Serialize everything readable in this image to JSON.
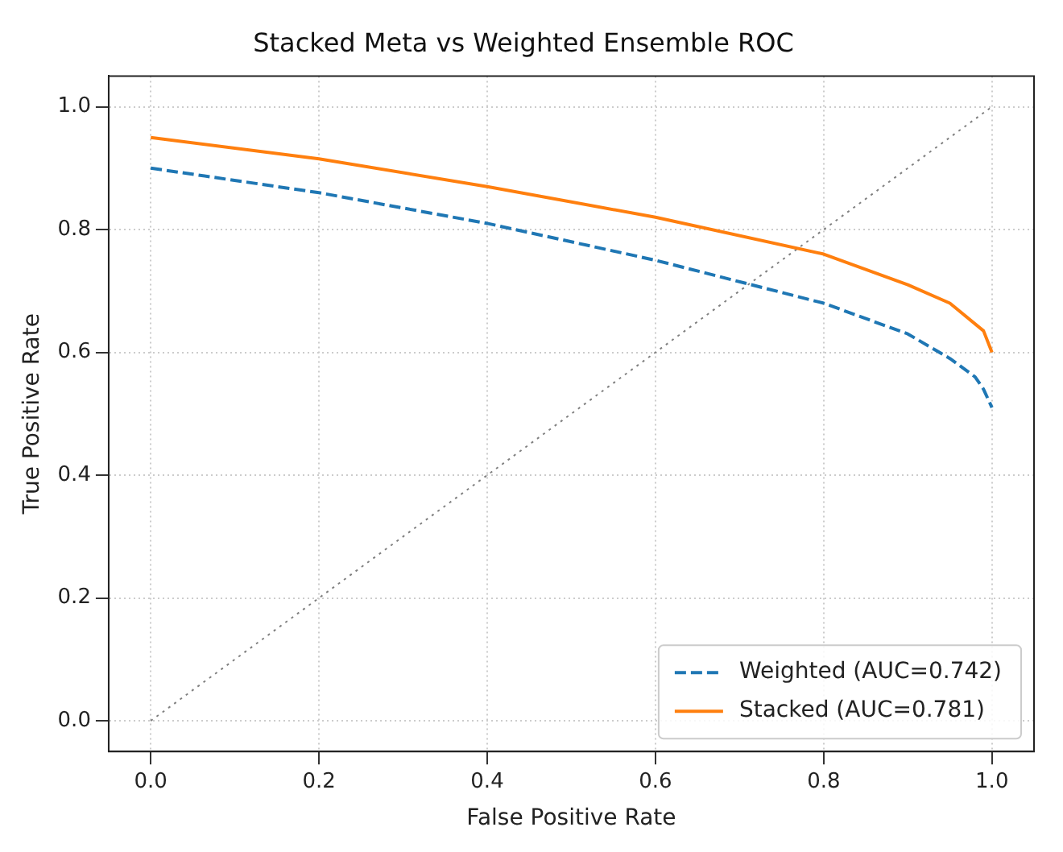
{
  "chart_data": {
    "type": "line",
    "title": "Stacked Meta vs Weighted Ensemble ROC",
    "xlabel": "False Positive Rate",
    "ylabel": "True Positive Rate",
    "x": [
      0,
      0.2,
      0.4,
      0.6,
      0.8,
      0.9,
      0.95,
      0.98,
      0.99,
      1
    ],
    "series": [
      {
        "name": "Weighted (AUC=0.742)",
        "color": "#1f77b4",
        "line_style": "dashed",
        "values": [
          0.9,
          0.86,
          0.81,
          0.75,
          0.68,
          0.63,
          0.59,
          0.56,
          0.54,
          0.51
        ]
      },
      {
        "name": "Stacked (AUC=0.781)",
        "color": "#ff7f0e",
        "line_style": "solid",
        "x": [
          0,
          0.2,
          0.4,
          0.6,
          0.8,
          0.9,
          0.95,
          0.99,
          1
        ],
        "values": [
          0.95,
          0.915,
          0.87,
          0.82,
          0.76,
          0.71,
          0.68,
          0.635,
          0.6
        ]
      },
      {
        "color": "#808080",
        "line_style": "dotted",
        "x": [
          0,
          1
        ],
        "values": [
          0,
          1
        ]
      }
    ],
    "xlim": [
      -0.05,
      1.05
    ],
    "ylim": [
      -0.05,
      1.05
    ],
    "xticks": [
      {
        "value": 0,
        "label": "0.0"
      },
      0.2,
      0.4,
      0.6,
      0.8,
      {
        "value": 1,
        "label": "1.0"
      }
    ],
    "yticks": [
      {
        "value": 0,
        "label": "0.0"
      },
      0.2,
      0.4,
      0.6,
      0.8,
      {
        "value": 1,
        "label": "1.0"
      }
    ],
    "grid": true,
    "legend": "bottom right",
    "marker": "none"
  }
}
